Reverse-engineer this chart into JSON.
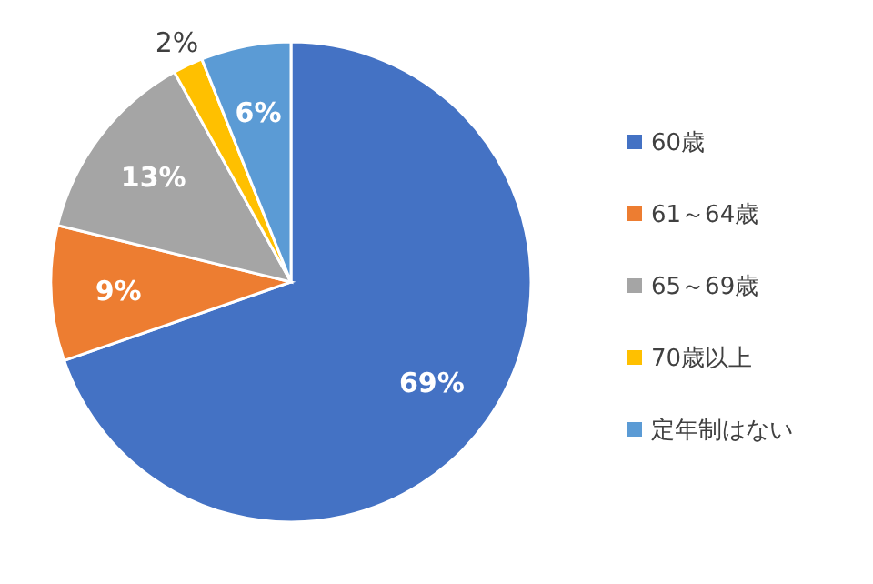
{
  "chart_data": {
    "type": "pie",
    "categories": [
      "60歳",
      "61～64歳",
      "65～69歳",
      "70歳以上",
      "定年制はない"
    ],
    "values": [
      69,
      9,
      13,
      2,
      6
    ],
    "colors": [
      "#4472c4",
      "#ed7d31",
      "#a5a5a5",
      "#ffc000",
      "#5b9bd5"
    ],
    "value_labels": [
      "69%",
      "9%",
      "13%",
      "2%",
      "6%"
    ],
    "legend": "right"
  }
}
